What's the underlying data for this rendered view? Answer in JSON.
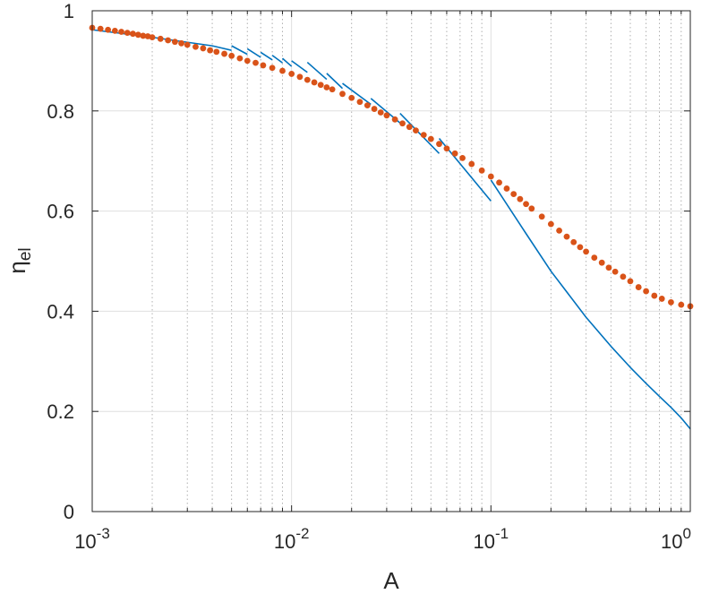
{
  "chart_data": {
    "type": "line",
    "title": "",
    "xlabel": "A",
    "ylabel": "η",
    "ylabel_subscript": "el",
    "xscale": "log",
    "xlim": [
      0.001,
      1
    ],
    "ylim": [
      0,
      1
    ],
    "x_ticks": [
      {
        "value": 0.001,
        "base": "10",
        "exp": "-3"
      },
      {
        "value": 0.01,
        "base": "10",
        "exp": "-2"
      },
      {
        "value": 0.1,
        "base": "10",
        "exp": "-1"
      },
      {
        "value": 1,
        "base": "10",
        "exp": "0"
      }
    ],
    "y_ticks": [
      {
        "value": 0,
        "label": "0"
      },
      {
        "value": 0.2,
        "label": "0.2"
      },
      {
        "value": 0.4,
        "label": "0.4"
      },
      {
        "value": 0.6,
        "label": "0.6"
      },
      {
        "value": 0.8,
        "label": "0.8"
      },
      {
        "value": 1,
        "label": "1"
      }
    ],
    "grid": true,
    "minor_grid_x": true,
    "legend": "none",
    "series": [
      {
        "style": "solid-line",
        "color": "#0072BD",
        "segments": [
          {
            "x": [
              0.001,
              0.002,
              0.004,
              0.005
            ],
            "y": [
              0.962,
              0.947,
              0.93,
              0.921
            ]
          },
          {
            "x": [
              0.005,
              0.006
            ],
            "y": [
              0.93,
              0.913
            ]
          },
          {
            "x": [
              0.006,
              0.007
            ],
            "y": [
              0.924,
              0.907
            ]
          },
          {
            "x": [
              0.007,
              0.008
            ],
            "y": [
              0.917,
              0.902
            ]
          },
          {
            "x": [
              0.008,
              0.009
            ],
            "y": [
              0.911,
              0.896
            ]
          },
          {
            "x": [
              0.009,
              0.01
            ],
            "y": [
              0.905,
              0.889
            ]
          },
          {
            "x": [
              0.01,
              0.012
            ],
            "y": [
              0.9,
              0.877
            ]
          },
          {
            "x": [
              0.012,
              0.015
            ],
            "y": [
              0.897,
              0.863
            ]
          },
          {
            "x": [
              0.015,
              0.018
            ],
            "y": [
              0.875,
              0.845
            ]
          },
          {
            "x": [
              0.018,
              0.025
            ],
            "y": [
              0.855,
              0.813
            ]
          },
          {
            "x": [
              0.025,
              0.035
            ],
            "y": [
              0.825,
              0.776
            ]
          },
          {
            "x": [
              0.035,
              0.055
            ],
            "y": [
              0.795,
              0.715
            ]
          },
          {
            "x": [
              0.055,
              0.1
            ],
            "y": [
              0.745,
              0.62
            ]
          },
          {
            "x": [
              0.1,
              0.15,
              0.2,
              0.3,
              0.4,
              0.5,
              0.6,
              0.7,
              0.8,
              0.9,
              1.0
            ],
            "y": [
              0.662,
              0.555,
              0.48,
              0.388,
              0.33,
              0.288,
              0.256,
              0.23,
              0.208,
              0.187,
              0.165
            ]
          }
        ]
      },
      {
        "style": "dots",
        "color": "#D95319",
        "x": [
          0.001,
          0.0011,
          0.0012,
          0.0013,
          0.0014,
          0.0015,
          0.0016,
          0.0017,
          0.0018,
          0.0019,
          0.002,
          0.0022,
          0.0024,
          0.0026,
          0.0028,
          0.003,
          0.0033,
          0.0036,
          0.0039,
          0.0042,
          0.0046,
          0.005,
          0.0055,
          0.006,
          0.0066,
          0.0072,
          0.008,
          0.009,
          0.01,
          0.011,
          0.012,
          0.013,
          0.014,
          0.015,
          0.016,
          0.018,
          0.02,
          0.022,
          0.024,
          0.026,
          0.028,
          0.03,
          0.033,
          0.036,
          0.039,
          0.042,
          0.046,
          0.05,
          0.055,
          0.06,
          0.066,
          0.072,
          0.08,
          0.09,
          0.1,
          0.11,
          0.12,
          0.13,
          0.14,
          0.15,
          0.16,
          0.18,
          0.2,
          0.22,
          0.24,
          0.26,
          0.28,
          0.3,
          0.33,
          0.36,
          0.39,
          0.42,
          0.46,
          0.5,
          0.55,
          0.6,
          0.66,
          0.72,
          0.8,
          0.9,
          1.0
        ],
        "y": [
          0.966,
          0.964,
          0.962,
          0.96,
          0.958,
          0.956,
          0.954,
          0.952,
          0.95,
          0.949,
          0.947,
          0.944,
          0.941,
          0.938,
          0.935,
          0.932,
          0.928,
          0.925,
          0.921,
          0.918,
          0.914,
          0.91,
          0.905,
          0.9,
          0.896,
          0.891,
          0.886,
          0.88,
          0.874,
          0.868,
          0.862,
          0.857,
          0.852,
          0.847,
          0.843,
          0.834,
          0.826,
          0.818,
          0.811,
          0.804,
          0.797,
          0.791,
          0.783,
          0.775,
          0.768,
          0.761,
          0.752,
          0.744,
          0.734,
          0.725,
          0.715,
          0.706,
          0.694,
          0.681,
          0.669,
          0.657,
          0.645,
          0.634,
          0.624,
          0.614,
          0.605,
          0.589,
          0.574,
          0.561,
          0.549,
          0.538,
          0.528,
          0.519,
          0.507,
          0.497,
          0.487,
          0.479,
          0.469,
          0.46,
          0.448,
          0.44,
          0.431,
          0.425,
          0.418,
          0.413,
          0.41
        ]
      }
    ]
  }
}
